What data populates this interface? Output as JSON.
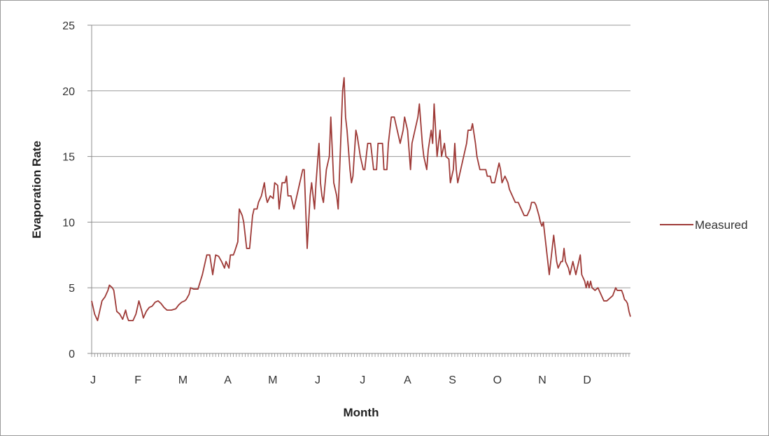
{
  "chart_data": {
    "type": "line",
    "title": "",
    "xlabel": "Month",
    "ylabel": "Evaporation Rate",
    "ylim": [
      0,
      25
    ],
    "yticks": [
      0,
      5,
      10,
      15,
      20,
      25
    ],
    "month_labels": [
      "J",
      "F",
      "M",
      "A",
      "M",
      "J",
      "J",
      "A",
      "S",
      "O",
      "N",
      "D"
    ],
    "x_unit": "day of year",
    "xlim": [
      1,
      366
    ],
    "grid": "horizontal",
    "legend_position": "right",
    "series": [
      {
        "name": "Measured",
        "color": "#9e3a37",
        "points": [
          [
            1,
            4.0
          ],
          [
            3,
            3.0
          ],
          [
            5,
            2.5
          ],
          [
            8,
            4.0
          ],
          [
            10,
            4.3
          ],
          [
            12,
            4.8
          ],
          [
            13,
            5.2
          ],
          [
            15,
            5.0
          ],
          [
            16,
            4.8
          ],
          [
            17,
            4.0
          ],
          [
            18,
            3.2
          ],
          [
            20,
            3.0
          ],
          [
            22,
            2.6
          ],
          [
            24,
            3.3
          ],
          [
            25,
            2.8
          ],
          [
            26,
            2.5
          ],
          [
            29,
            2.5
          ],
          [
            31,
            3.0
          ],
          [
            33,
            4.0
          ],
          [
            35,
            3.2
          ],
          [
            36,
            2.7
          ],
          [
            38,
            3.2
          ],
          [
            40,
            3.5
          ],
          [
            42,
            3.6
          ],
          [
            44,
            3.9
          ],
          [
            46,
            4.0
          ],
          [
            48,
            3.8
          ],
          [
            50,
            3.5
          ],
          [
            52,
            3.3
          ],
          [
            55,
            3.3
          ],
          [
            58,
            3.4
          ],
          [
            60,
            3.7
          ],
          [
            62,
            3.9
          ],
          [
            64,
            4.0
          ],
          [
            65,
            4.1
          ],
          [
            67,
            4.5
          ],
          [
            68,
            5.0
          ],
          [
            70,
            4.9
          ],
          [
            73,
            4.9
          ],
          [
            76,
            6.0
          ],
          [
            79,
            7.5
          ],
          [
            81,
            7.5
          ],
          [
            83,
            6.0
          ],
          [
            85,
            7.5
          ],
          [
            87,
            7.4
          ],
          [
            89,
            7.0
          ],
          [
            91,
            6.5
          ],
          [
            92,
            7.0
          ],
          [
            94,
            6.5
          ],
          [
            95,
            7.5
          ],
          [
            97,
            7.5
          ],
          [
            98,
            7.8
          ],
          [
            100,
            8.5
          ],
          [
            101,
            11.0
          ],
          [
            103,
            10.5
          ],
          [
            104,
            10.0
          ],
          [
            105,
            9.0
          ],
          [
            106,
            8.0
          ],
          [
            108,
            8.0
          ],
          [
            110,
            10.5
          ],
          [
            111,
            11.0
          ],
          [
            113,
            11.0
          ],
          [
            114,
            11.5
          ],
          [
            116,
            12.0
          ],
          [
            118,
            13.0
          ],
          [
            119,
            12.0
          ],
          [
            120,
            11.5
          ],
          [
            122,
            12.0
          ],
          [
            124,
            11.8
          ],
          [
            125,
            13.0
          ],
          [
            127,
            12.8
          ],
          [
            128,
            11.0
          ],
          [
            130,
            13.0
          ],
          [
            132,
            13.0
          ],
          [
            133,
            13.5
          ],
          [
            134,
            12.0
          ],
          [
            136,
            12.0
          ],
          [
            138,
            11.0
          ],
          [
            140,
            12.0
          ],
          [
            142,
            13.0
          ],
          [
            144,
            14.0
          ],
          [
            145,
            14.0
          ],
          [
            146,
            11.0
          ],
          [
            147,
            8.0
          ],
          [
            149,
            12.0
          ],
          [
            150,
            13.0
          ],
          [
            152,
            11.0
          ],
          [
            153,
            13.0
          ],
          [
            155,
            16.0
          ],
          [
            156,
            13.0
          ],
          [
            157,
            12.0
          ],
          [
            158,
            11.5
          ],
          [
            160,
            14.0
          ],
          [
            162,
            15.0
          ],
          [
            163,
            18.0
          ],
          [
            164,
            15.5
          ],
          [
            165,
            13.0
          ],
          [
            167,
            12.0
          ],
          [
            168,
            11.0
          ],
          [
            170,
            17.0
          ],
          [
            171,
            20.0
          ],
          [
            172,
            21.0
          ],
          [
            173,
            18.0
          ],
          [
            174,
            17.0
          ],
          [
            175,
            15.5
          ],
          [
            176,
            14.0
          ],
          [
            177,
            13.0
          ],
          [
            178,
            13.5
          ],
          [
            180,
            17.0
          ],
          [
            181,
            16.5
          ],
          [
            183,
            15.0
          ],
          [
            185,
            14.0
          ],
          [
            186,
            14.0
          ],
          [
            188,
            16.0
          ],
          [
            190,
            16.0
          ],
          [
            191,
            15.0
          ],
          [
            192,
            14.0
          ],
          [
            194,
            14.0
          ],
          [
            195,
            16.0
          ],
          [
            196,
            16.0
          ],
          [
            198,
            16.0
          ],
          [
            199,
            14.0
          ],
          [
            201,
            14.0
          ],
          [
            202,
            16.0
          ],
          [
            204,
            18.0
          ],
          [
            206,
            18.0
          ],
          [
            208,
            17.0
          ],
          [
            210,
            16.0
          ],
          [
            212,
            17.0
          ],
          [
            213,
            18.0
          ],
          [
            215,
            17.0
          ],
          [
            217,
            14.0
          ],
          [
            218,
            16.0
          ],
          [
            220,
            17.0
          ],
          [
            222,
            18.0
          ],
          [
            223,
            19.0
          ],
          [
            225,
            16.0
          ],
          [
            226,
            15.0
          ],
          [
            228,
            14.0
          ],
          [
            229,
            15.5
          ],
          [
            231,
            17.0
          ],
          [
            232,
            16.0
          ],
          [
            233,
            19.0
          ],
          [
            234,
            17.0
          ],
          [
            235,
            15.0
          ],
          [
            237,
            17.0
          ],
          [
            238,
            15.0
          ],
          [
            240,
            16.0
          ],
          [
            241,
            15.0
          ],
          [
            243,
            14.8
          ],
          [
            244,
            13.0
          ],
          [
            246,
            14.0
          ],
          [
            247,
            16.0
          ],
          [
            248,
            14.0
          ],
          [
            249,
            13.0
          ],
          [
            251,
            14.0
          ],
          [
            253,
            15.0
          ],
          [
            255,
            16.0
          ],
          [
            256,
            17.0
          ],
          [
            258,
            17.0
          ],
          [
            259,
            17.5
          ],
          [
            261,
            16.0
          ],
          [
            262,
            15.0
          ],
          [
            264,
            14.0
          ],
          [
            266,
            14.0
          ],
          [
            268,
            14.0
          ],
          [
            269,
            13.5
          ],
          [
            271,
            13.5
          ],
          [
            272,
            13.0
          ],
          [
            274,
            13.0
          ],
          [
            276,
            14.0
          ],
          [
            277,
            14.5
          ],
          [
            278,
            14.0
          ],
          [
            279,
            13.0
          ],
          [
            281,
            13.5
          ],
          [
            283,
            13.0
          ],
          [
            284,
            12.5
          ],
          [
            286,
            12.0
          ],
          [
            288,
            11.5
          ],
          [
            290,
            11.5
          ],
          [
            292,
            11.0
          ],
          [
            294,
            10.5
          ],
          [
            296,
            10.5
          ],
          [
            298,
            11.0
          ],
          [
            299,
            11.5
          ],
          [
            301,
            11.5
          ],
          [
            302,
            11.3
          ],
          [
            304,
            10.5
          ],
          [
            305,
            10.0
          ],
          [
            306,
            9.7
          ],
          [
            307,
            10.0
          ],
          [
            308,
            9.0
          ],
          [
            310,
            7.0
          ],
          [
            311,
            6.0
          ],
          [
            312,
            7.0
          ],
          [
            314,
            9.0
          ],
          [
            315,
            8.0
          ],
          [
            316,
            7.0
          ],
          [
            317,
            6.5
          ],
          [
            319,
            7.0
          ],
          [
            320,
            7.0
          ],
          [
            321,
            8.0
          ],
          [
            322,
            7.0
          ],
          [
            324,
            6.5
          ],
          [
            325,
            6.0
          ],
          [
            327,
            7.0
          ],
          [
            328,
            6.5
          ],
          [
            329,
            6.0
          ],
          [
            330,
            6.5
          ],
          [
            332,
            7.5
          ],
          [
            333,
            6.0
          ],
          [
            335,
            5.5
          ],
          [
            336,
            5.0
          ],
          [
            337,
            5.5
          ],
          [
            338,
            5.0
          ],
          [
            339,
            5.5
          ],
          [
            340,
            5.0
          ],
          [
            342,
            4.8
          ],
          [
            344,
            5.0
          ],
          [
            346,
            4.5
          ],
          [
            348,
            4.0
          ],
          [
            350,
            4.0
          ],
          [
            352,
            4.2
          ],
          [
            354,
            4.4
          ],
          [
            356,
            5.0
          ],
          [
            357,
            4.8
          ],
          [
            358,
            4.8
          ],
          [
            360,
            4.8
          ],
          [
            361,
            4.5
          ],
          [
            362,
            4.1
          ],
          [
            363,
            4.0
          ],
          [
            364,
            3.8
          ],
          [
            365,
            3.2
          ],
          [
            366,
            2.8
          ]
        ]
      }
    ]
  }
}
